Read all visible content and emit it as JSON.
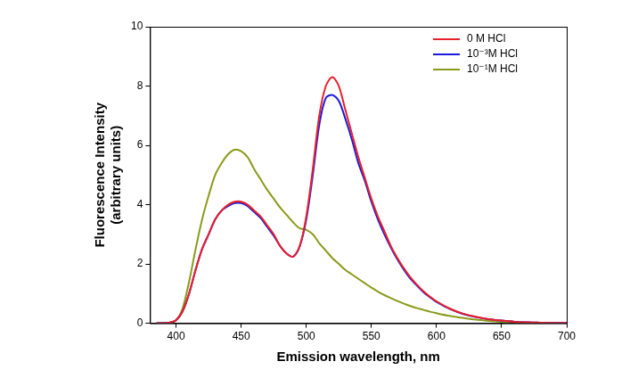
{
  "chart_data": {
    "type": "line",
    "x_label": "Emission wavelength, nm",
    "y_label": "Fluorescence Intensity\n(arbitrary units)",
    "x": [
      385,
      390,
      395,
      400,
      405,
      410,
      415,
      420,
      425,
      430,
      435,
      440,
      445,
      450,
      455,
      460,
      465,
      470,
      475,
      480,
      485,
      490,
      495,
      500,
      505,
      510,
      515,
      520,
      525,
      530,
      535,
      540,
      545,
      550,
      555,
      560,
      565,
      570,
      575,
      580,
      585,
      590,
      595,
      600,
      610,
      620,
      630,
      640,
      650,
      660,
      670,
      680,
      690,
      700
    ],
    "series": [
      {
        "name": "0 M HCl",
        "color": "#e8202a",
        "values": [
          0,
          0,
          0.02,
          0.1,
          0.4,
          1.0,
          1.8,
          2.5,
          3.0,
          3.5,
          3.8,
          4.0,
          4.1,
          4.1,
          4.0,
          3.8,
          3.6,
          3.3,
          3.0,
          2.6,
          2.35,
          2.25,
          2.6,
          3.6,
          5.2,
          7.0,
          8.0,
          8.3,
          8.0,
          7.2,
          6.4,
          5.6,
          4.9,
          4.2,
          3.6,
          3.1,
          2.6,
          2.2,
          1.85,
          1.55,
          1.3,
          1.08,
          0.9,
          0.74,
          0.5,
          0.33,
          0.22,
          0.14,
          0.09,
          0.05,
          0.03,
          0.02,
          0.01,
          0.01
        ]
      },
      {
        "name": "10⁻³M HCl",
        "color": "#1a1adc",
        "values": [
          0,
          0,
          0.02,
          0.1,
          0.4,
          1.0,
          1.8,
          2.5,
          3.0,
          3.5,
          3.8,
          3.95,
          4.05,
          4.05,
          3.95,
          3.75,
          3.55,
          3.25,
          2.95,
          2.6,
          2.35,
          2.25,
          2.6,
          3.5,
          5.0,
          6.7,
          7.6,
          7.7,
          7.5,
          6.9,
          6.2,
          5.4,
          4.8,
          4.1,
          3.5,
          3.0,
          2.55,
          2.15,
          1.8,
          1.5,
          1.27,
          1.05,
          0.88,
          0.72,
          0.49,
          0.32,
          0.21,
          0.14,
          0.09,
          0.05,
          0.03,
          0.02,
          0.01,
          0.01
        ]
      },
      {
        "name": "10⁻¹M HCl",
        "color": "#8a9a1a",
        "values": [
          0,
          0,
          0.02,
          0.1,
          0.5,
          1.4,
          2.5,
          3.5,
          4.3,
          5.0,
          5.4,
          5.7,
          5.85,
          5.8,
          5.6,
          5.2,
          4.85,
          4.5,
          4.2,
          3.9,
          3.65,
          3.4,
          3.2,
          3.15,
          3.0,
          2.7,
          2.45,
          2.2,
          2.0,
          1.8,
          1.65,
          1.5,
          1.35,
          1.2,
          1.07,
          0.95,
          0.85,
          0.75,
          0.66,
          0.58,
          0.51,
          0.45,
          0.39,
          0.34,
          0.25,
          0.18,
          0.12,
          0.08,
          0.05,
          0.03,
          0.02,
          0.01,
          0,
          0
        ]
      }
    ],
    "xlim": [
      380,
      700
    ],
    "xticks": [
      400,
      450,
      500,
      550,
      600,
      650,
      700
    ],
    "ylim": [
      0,
      10
    ],
    "yticks": [
      0,
      2,
      4,
      6,
      8,
      10
    ],
    "grid": false,
    "legend": "upper right"
  }
}
